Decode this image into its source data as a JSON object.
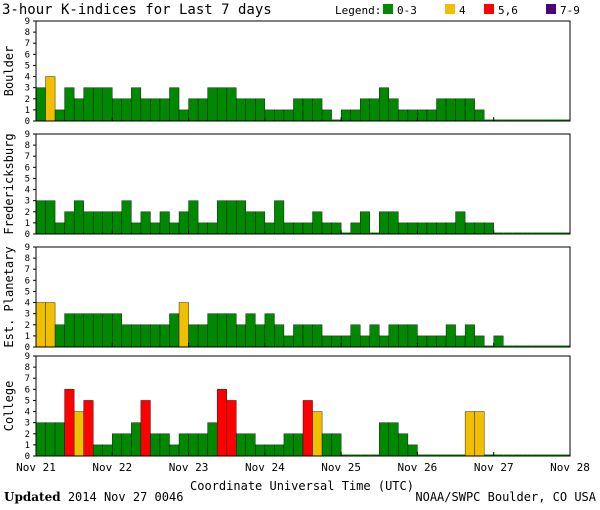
{
  "title": "3-hour K-indices for Last 7 days",
  "legend": {
    "label": "Legend:",
    "items": [
      {
        "name": "0-3",
        "color": "#008800"
      },
      {
        "name": "4",
        "color": "#f0c000"
      },
      {
        "name": "5,6",
        "color": "#ff0000"
      },
      {
        "name": "7-9",
        "color": "#4b0082"
      }
    ]
  },
  "chart_data": {
    "type": "bar",
    "xlabel": "Coordinate Universal Time (UTC)",
    "x_tick_labels": [
      "Nov 21",
      "Nov 22",
      "Nov 23",
      "Nov 24",
      "Nov 25",
      "Nov 26",
      "Nov 27",
      "Nov 28"
    ],
    "ylim": [
      0,
      9
    ],
    "y_ticks": [
      0,
      1,
      2,
      3,
      4,
      5,
      6,
      7,
      8,
      9
    ],
    "grid": false,
    "panels": [
      {
        "name": "Boulder",
        "values": [
          3,
          4,
          1,
          3,
          2,
          3,
          3,
          3,
          2,
          2,
          3,
          2,
          2,
          2,
          3,
          1,
          2,
          2,
          3,
          3,
          3,
          2,
          2,
          2,
          1,
          1,
          1,
          2,
          2,
          2,
          1,
          0,
          1,
          1,
          2,
          2,
          3,
          2,
          1,
          1,
          1,
          1,
          2,
          2,
          2,
          2,
          1,
          0,
          0,
          0,
          0,
          0,
          0,
          0,
          0,
          0
        ]
      },
      {
        "name": "Fredericksburg",
        "values": [
          3,
          3,
          1,
          2,
          3,
          2,
          2,
          2,
          2,
          3,
          1,
          2,
          1,
          2,
          1,
          2,
          3,
          1,
          1,
          3,
          3,
          3,
          2,
          2,
          1,
          3,
          1,
          1,
          1,
          2,
          1,
          1,
          0,
          1,
          2,
          0,
          2,
          2,
          1,
          1,
          1,
          1,
          1,
          1,
          2,
          1,
          1,
          1,
          0,
          0,
          0,
          0,
          0,
          0,
          0,
          0
        ]
      },
      {
        "name": "Est. Planetary",
        "values": [
          4,
          4,
          2,
          3,
          3,
          3,
          3,
          3,
          3,
          2,
          2,
          2,
          2,
          2,
          3,
          4,
          2,
          2,
          3,
          3,
          3,
          2,
          3,
          2,
          3,
          2,
          1,
          2,
          2,
          2,
          1,
          1,
          1,
          2,
          1,
          2,
          1,
          2,
          2,
          2,
          1,
          1,
          1,
          2,
          1,
          2,
          1,
          0,
          1,
          0,
          0,
          0,
          0,
          0,
          0,
          0
        ]
      },
      {
        "name": "College",
        "values": [
          3,
          3,
          3,
          6,
          4,
          5,
          1,
          1,
          2,
          2,
          3,
          5,
          2,
          2,
          1,
          2,
          2,
          2,
          3,
          6,
          5,
          2,
          2,
          1,
          1,
          1,
          2,
          2,
          5,
          4,
          2,
          2,
          0,
          0,
          0,
          0,
          3,
          3,
          2,
          1,
          0,
          0,
          0,
          0,
          0,
          4,
          4,
          0,
          0,
          0,
          0,
          0,
          0,
          0,
          0,
          0
        ]
      }
    ]
  },
  "footer": {
    "updated_label": "Updated",
    "updated_value": "2014 Nov 27 0046",
    "credit": "NOAA/SWPC Boulder, CO USA"
  }
}
